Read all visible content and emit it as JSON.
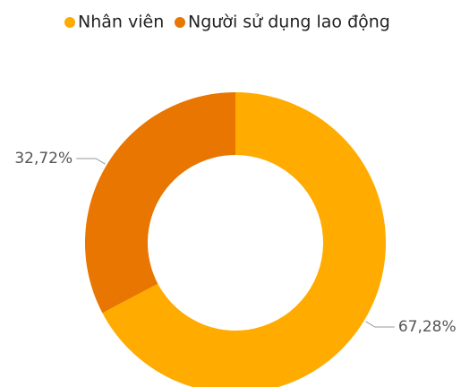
{
  "chart_data": {
    "type": "donut",
    "categories": [
      "Nhân viên",
      "Người sử dụng lao động"
    ],
    "values": [
      67.28,
      32.72
    ],
    "value_labels": [
      "67,28%",
      "32,72%"
    ],
    "colors": [
      "#FFAB00",
      "#E87600"
    ],
    "legend": "top"
  }
}
